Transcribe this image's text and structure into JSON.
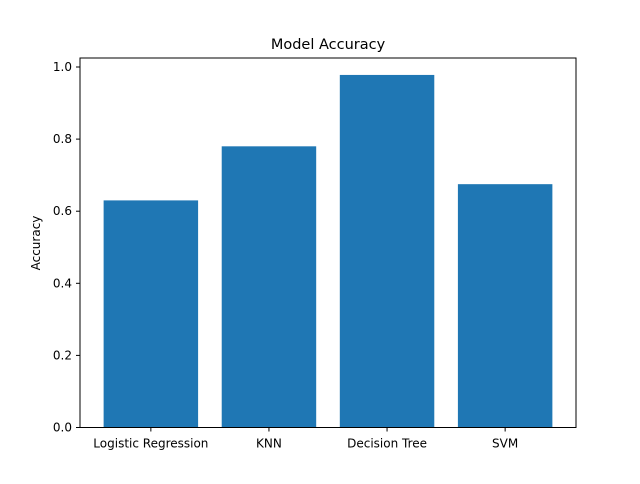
{
  "chart_data": {
    "type": "bar",
    "title": "Model Accuracy",
    "xlabel": "",
    "ylabel": "Accuracy",
    "categories": [
      "Logistic Regression",
      "KNN",
      "Decision Tree",
      "SVM"
    ],
    "values": [
      0.63,
      0.78,
      0.978,
      0.675
    ],
    "ylim": [
      0,
      1.025
    ],
    "yticks": [
      "0.0",
      "0.2",
      "0.4",
      "0.6",
      "0.8",
      "1.0"
    ],
    "bar_color": "#1f77b4",
    "grid": false,
    "legend": "none"
  }
}
